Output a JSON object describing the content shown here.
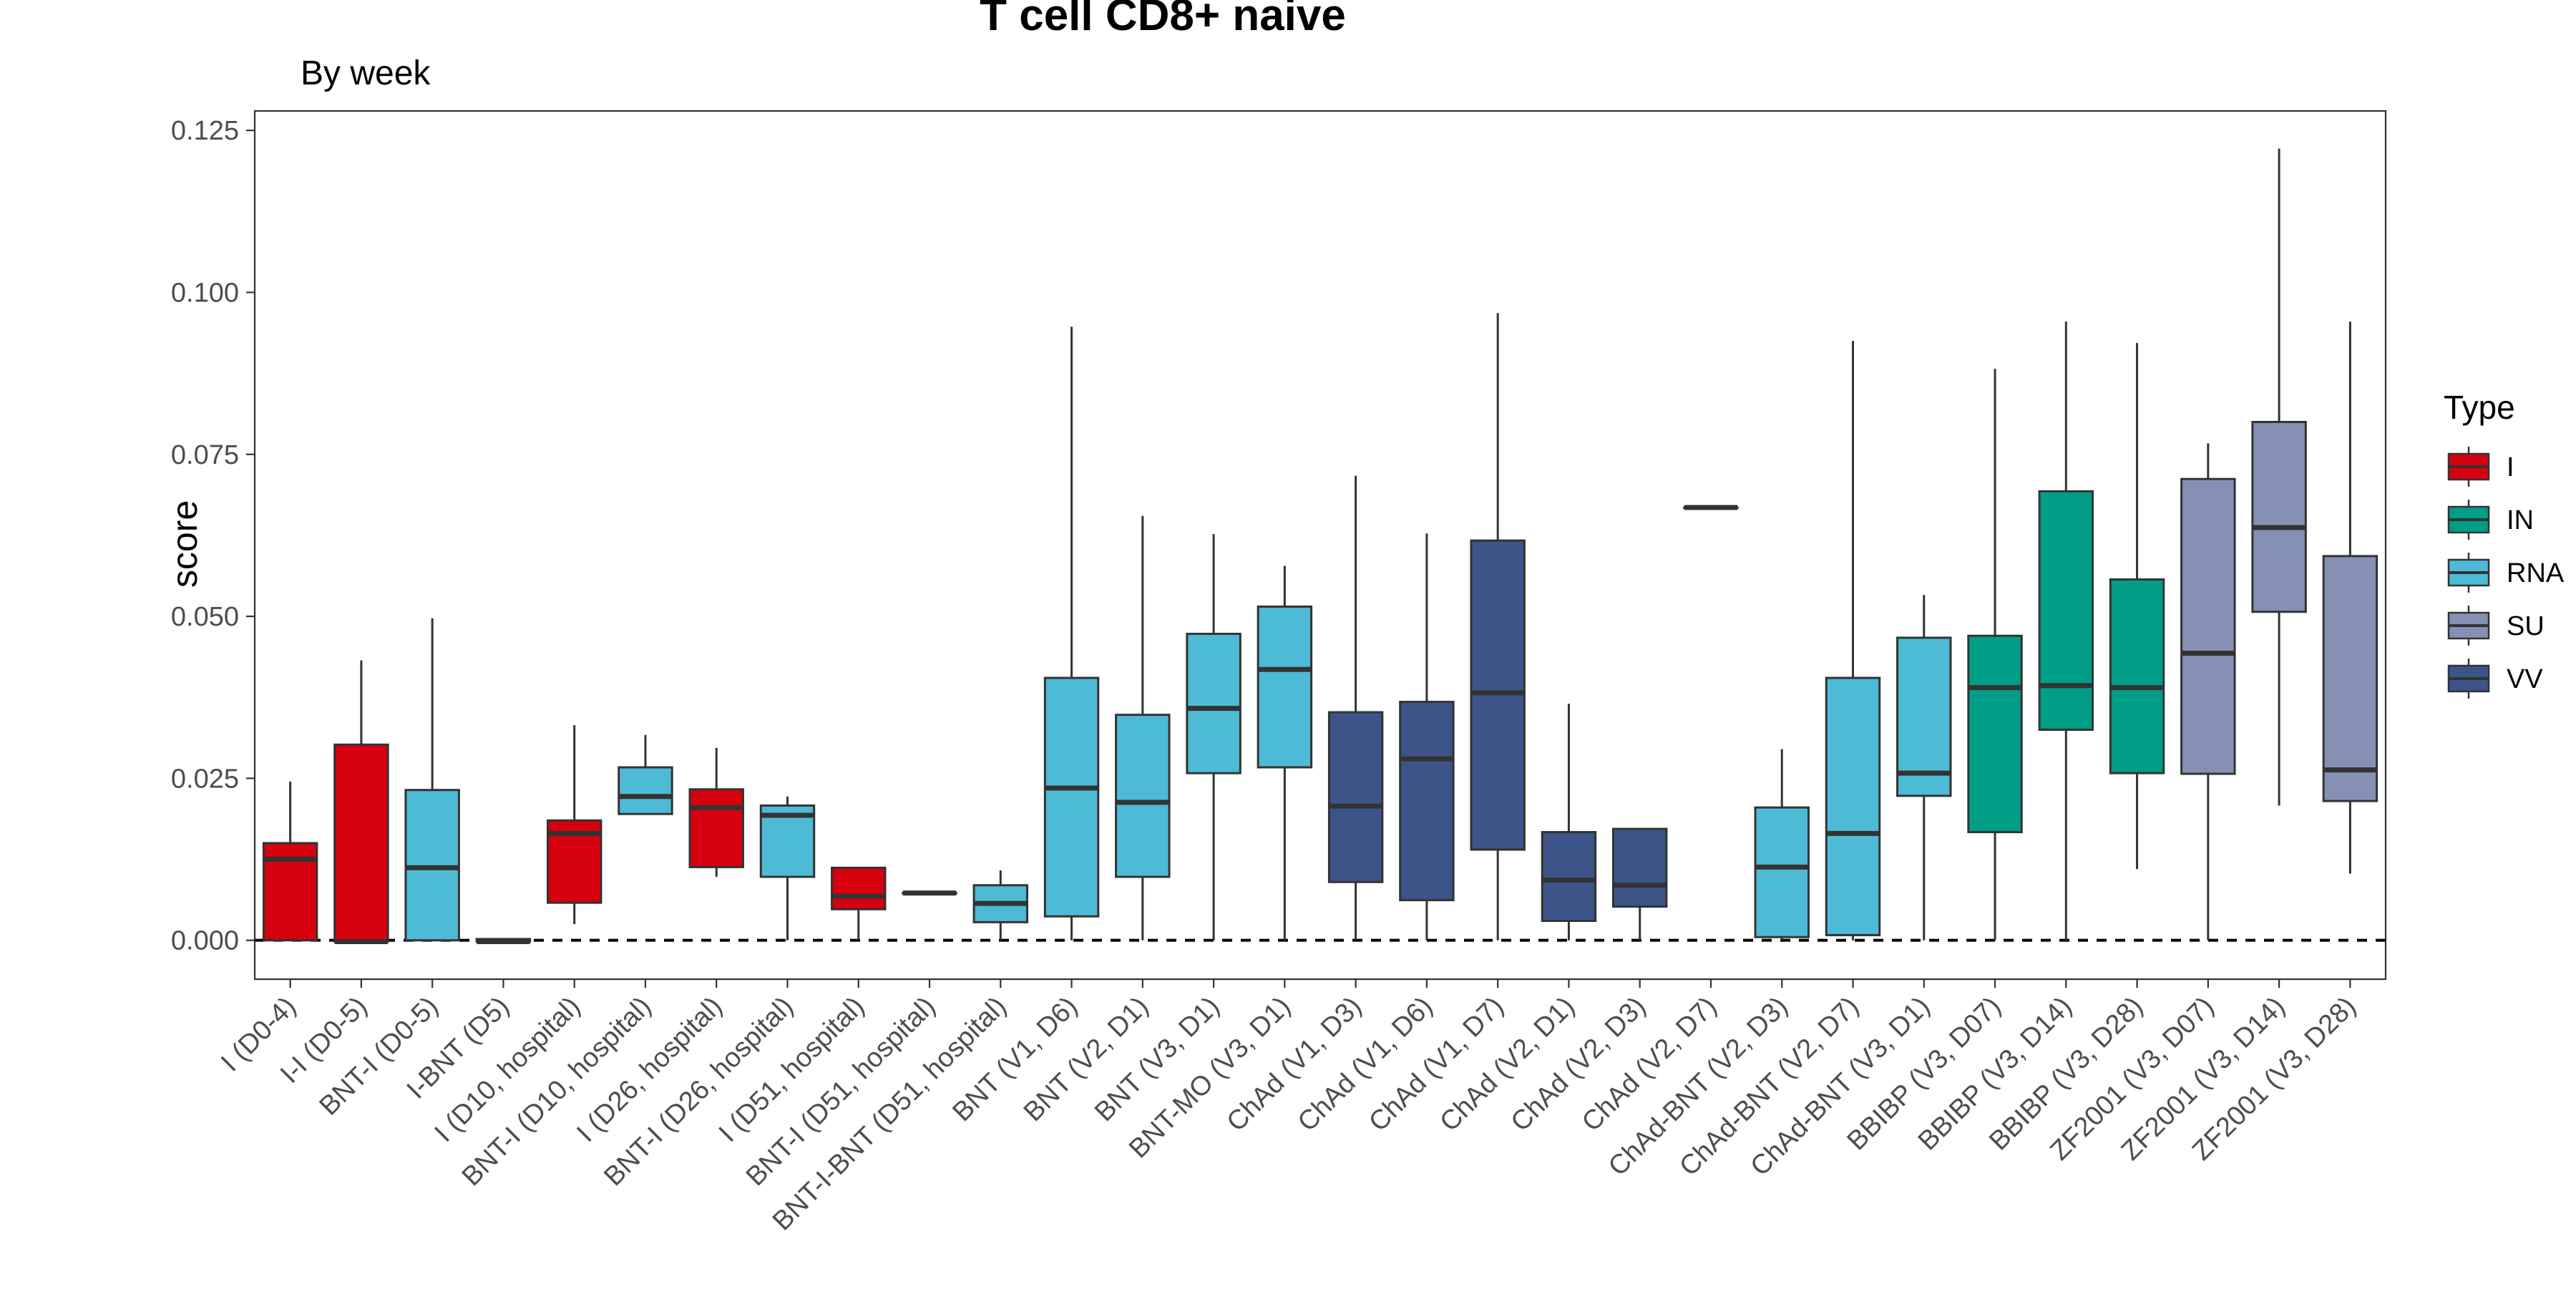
{
  "chart_data": {
    "type": "box",
    "title": "T cell CD8+ naive",
    "subtitle": "By week",
    "xlabel": "",
    "ylabel": "score",
    "ylim": [
      -0.006,
      0.128
    ],
    "y_ticks": [
      0.0,
      0.025,
      0.05,
      0.075,
      0.1,
      0.125
    ],
    "y_tick_labels": [
      "0.000",
      "0.025",
      "0.050",
      "0.075",
      "0.100",
      "0.125"
    ],
    "reference_line": {
      "y": 0,
      "style": "dashed"
    },
    "legend": {
      "title": "Type",
      "position": "right",
      "entries": [
        {
          "label": "I",
          "color": "#d7000f"
        },
        {
          "label": "IN",
          "color": "#009e87"
        },
        {
          "label": "RNA",
          "color": "#4dbbd5"
        },
        {
          "label": "SU",
          "color": "#8491b4"
        },
        {
          "label": "VV",
          "color": "#3c5488"
        }
      ]
    },
    "categories": [
      "I (D0-4)",
      "I-I (D0-5)",
      "BNT-I (D0-5)",
      "I-BNT (D5)",
      "I (D10, hospital)",
      "BNT-I (D10, hospital)",
      "I (D26, hospital)",
      "BNT-I (D26, hospital)",
      "I (D51, hospital)",
      "BNT-I (D51, hospital)",
      "BNT-I-BNT (D51, hospital)",
      "BNT (V1, D6)",
      "BNT (V2, D1)",
      "BNT (V3, D1)",
      "BNT-MO (V3, D1)",
      "ChAd (V1, D3)",
      "ChAd (V1, D6)",
      "ChAd (V1, D7)",
      "ChAd (V2, D1)",
      "ChAd (V2, D3)",
      "ChAd (V2, D7)",
      "ChAd-BNT (V2, D3)",
      "ChAd-BNT (V2, D7)",
      "ChAd-BNT (V3, D1)",
      "BBIBP (V3, D07)",
      "BBIBP (V3, D14)",
      "BBIBP (V3, D28)",
      "ZF2001 (V3, D07)",
      "ZF2001 (V3, D14)",
      "ZF2001 (V3, D28)"
    ],
    "boxes": [
      {
        "type": "I",
        "min": 0.0,
        "q1": 0.0,
        "median": 0.0125,
        "q3": 0.015,
        "max": 0.0245
      },
      {
        "type": "I",
        "min": -0.0002,
        "q1": -0.0002,
        "median": -0.0002,
        "q3": 0.0302,
        "max": 0.0432
      },
      {
        "type": "RNA",
        "min": 0.0,
        "q1": 0.0,
        "median": 0.0112,
        "q3": 0.0232,
        "max": 0.0497
      },
      {
        "type": "RNA",
        "min": -0.0002,
        "q1": -0.0002,
        "median": -0.0002,
        "q3": 0.0002,
        "max": 0.0002
      },
      {
        "type": "I",
        "min": 0.0025,
        "q1": 0.0058,
        "median": 0.0165,
        "q3": 0.0185,
        "max": 0.0332
      },
      {
        "type": "RNA",
        "min": 0.0195,
        "q1": 0.0195,
        "median": 0.0222,
        "q3": 0.0267,
        "max": 0.0317
      },
      {
        "type": "I",
        "min": 0.0098,
        "q1": 0.0113,
        "median": 0.0205,
        "q3": 0.0233,
        "max": 0.0297
      },
      {
        "type": "RNA",
        "min": 0.0,
        "q1": 0.0098,
        "median": 0.0193,
        "q3": 0.0208,
        "max": 0.0222
      },
      {
        "type": "I",
        "min": 0.0,
        "q1": 0.0048,
        "median": 0.0068,
        "q3": 0.0112,
        "max": 0.0112
      },
      {
        "type": "RNA",
        "min": 0.0073,
        "q1": 0.0073,
        "median": 0.0073,
        "q3": 0.0073,
        "max": 0.0073
      },
      {
        "type": "RNA",
        "min": 0.0,
        "q1": 0.0028,
        "median": 0.0057,
        "q3": 0.0085,
        "max": 0.0108
      },
      {
        "type": "RNA",
        "min": 0.0,
        "q1": 0.0037,
        "median": 0.0235,
        "q3": 0.0405,
        "max": 0.0947
      },
      {
        "type": "RNA",
        "min": 0.0,
        "q1": 0.0098,
        "median": 0.0213,
        "q3": 0.0348,
        "max": 0.0655
      },
      {
        "type": "RNA",
        "min": 0.0,
        "q1": 0.0258,
        "median": 0.0358,
        "q3": 0.0473,
        "max": 0.0627
      },
      {
        "type": "RNA",
        "min": 0.0,
        "q1": 0.0267,
        "median": 0.0418,
        "q3": 0.0515,
        "max": 0.0578
      },
      {
        "type": "VV",
        "min": 0.0,
        "q1": 0.009,
        "median": 0.0207,
        "q3": 0.0352,
        "max": 0.0717
      },
      {
        "type": "VV",
        "min": 0.0,
        "q1": 0.0062,
        "median": 0.028,
        "q3": 0.0368,
        "max": 0.0628
      },
      {
        "type": "VV",
        "min": 0.0,
        "q1": 0.014,
        "median": 0.0382,
        "q3": 0.0617,
        "max": 0.0968
      },
      {
        "type": "VV",
        "min": 0.0,
        "q1": 0.003,
        "median": 0.0093,
        "q3": 0.0167,
        "max": 0.0365
      },
      {
        "type": "VV",
        "min": 0.0,
        "q1": 0.0052,
        "median": 0.0085,
        "q3": 0.0172,
        "max": 0.0172
      },
      {
        "type": "VV",
        "min": 0.0668,
        "q1": 0.0668,
        "median": 0.0668,
        "q3": 0.0668,
        "max": 0.0668
      },
      {
        "type": "RNA",
        "min": 0.0,
        "q1": 0.0005,
        "median": 0.0113,
        "q3": 0.0205,
        "max": 0.0295
      },
      {
        "type": "RNA",
        "min": 0.0,
        "q1": 0.0008,
        "median": 0.0165,
        "q3": 0.0405,
        "max": 0.0925
      },
      {
        "type": "RNA",
        "min": 0.0,
        "q1": 0.0223,
        "median": 0.0258,
        "q3": 0.0467,
        "max": 0.0533
      },
      {
        "type": "IN",
        "min": 0.0,
        "q1": 0.0167,
        "median": 0.039,
        "q3": 0.047,
        "max": 0.0882
      },
      {
        "type": "IN",
        "min": 0.0,
        "q1": 0.0325,
        "median": 0.0393,
        "q3": 0.0693,
        "max": 0.0955
      },
      {
        "type": "IN",
        "min": 0.011,
        "q1": 0.0258,
        "median": 0.039,
        "q3": 0.0557,
        "max": 0.0922
      },
      {
        "type": "SU",
        "min": 0.0,
        "q1": 0.0257,
        "median": 0.0443,
        "q3": 0.0712,
        "max": 0.0767
      },
      {
        "type": "SU",
        "min": 0.0208,
        "q1": 0.0507,
        "median": 0.0637,
        "q3": 0.08,
        "max": 0.1222
      },
      {
        "type": "SU",
        "min": 0.0103,
        "q1": 0.0215,
        "median": 0.0263,
        "q3": 0.0593,
        "max": 0.0955
      }
    ]
  }
}
